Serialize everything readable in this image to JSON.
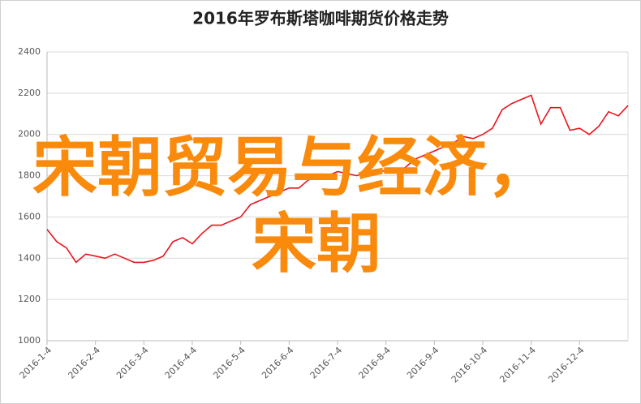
{
  "chart_data": {
    "type": "line",
    "title": "2016年罗布斯塔咖啡期货价格走势",
    "categories": [
      "2016-1-4",
      null,
      null,
      null,
      null,
      "2016-2-4",
      null,
      null,
      null,
      null,
      "2016-3-4",
      null,
      null,
      null,
      null,
      "2016-4-4",
      null,
      null,
      null,
      null,
      "2016-5-4",
      null,
      null,
      null,
      null,
      "2016-6-4",
      null,
      null,
      null,
      null,
      "2016-7-4",
      null,
      null,
      null,
      null,
      "2016-8-4",
      null,
      null,
      null,
      null,
      "2016-9-4",
      null,
      null,
      null,
      null,
      "2016-10-4",
      null,
      null,
      null,
      null,
      "2016-11-4",
      null,
      null,
      null,
      null,
      "2016-12-4",
      null,
      null,
      null,
      null,
      null
    ],
    "series": [
      {
        "color": "#e8141c",
        "values": [
          1540,
          1480,
          1450,
          1380,
          1420,
          1410,
          1400,
          1420,
          1400,
          1380,
          1380,
          1390,
          1410,
          1480,
          1500,
          1470,
          1520,
          1560,
          1560,
          1580,
          1600,
          1660,
          1680,
          1700,
          1720,
          1740,
          1740,
          1780,
          1790,
          1800,
          1820,
          1810,
          1800,
          1820,
          1830,
          1820,
          1820,
          1840,
          1880,
          1900,
          1920,
          1940,
          1960,
          1990,
          1980,
          2000,
          2030,
          2120,
          2150,
          2170,
          2190,
          2050,
          2130,
          2130,
          2020,
          2030,
          2000,
          2040,
          2110,
          2090,
          2140
        ]
      }
    ],
    "ylim": [
      1000,
      2400
    ],
    "yticks": [
      1000,
      1200,
      1400,
      1600,
      1800,
      2000,
      2200,
      2400
    ],
    "grid": true,
    "annotations": [
      "宋朝贸易与经济，",
      "宋朝"
    ]
  }
}
